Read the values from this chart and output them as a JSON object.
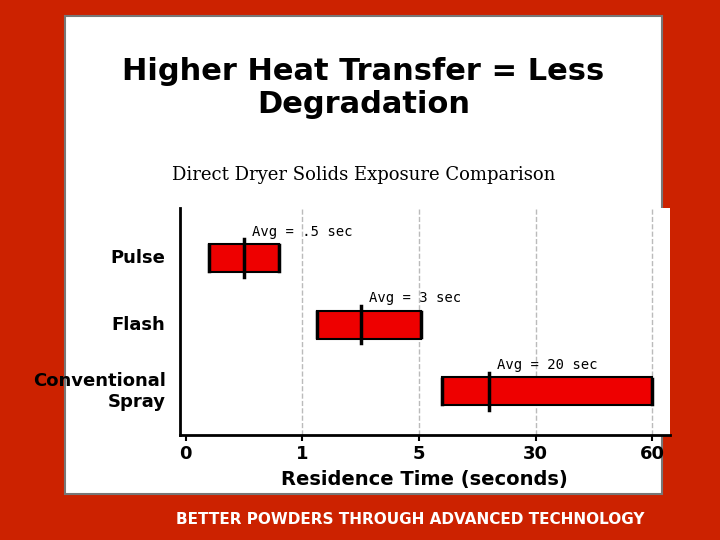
{
  "title": "Higher Heat Transfer = Less\nDegradation",
  "subtitle": "Direct Dryer Solids Exposure Comparison",
  "xlabel": "Residence Time (seconds)",
  "categories": [
    "Pulse",
    "Flash",
    "Conventional\nSpray"
  ],
  "bar_starts": [
    0.2,
    1.5,
    10.0
  ],
  "bar_ends": [
    0.8,
    5.5,
    60.0
  ],
  "bar_avgs": [
    0.5,
    3.0,
    20.0
  ],
  "avg_labels": [
    "Avg = .5 sec",
    "Avg = 3 sec",
    "Avg = 20 sec"
  ],
  "xtick_vals": [
    0,
    1,
    5,
    30,
    60
  ],
  "xtick_pos": [
    0,
    1,
    2,
    3,
    4
  ],
  "bar_color": "#ee0000",
  "bar_height": 0.42,
  "grid_color": "#bbbbbb",
  "outer_bg": "#cc2200",
  "title_fontsize": 22,
  "subtitle_fontsize": 13,
  "axis_label_fontsize": 13,
  "tick_fontsize": 13,
  "cat_fontsize": 13,
  "avg_label_fontsize": 10,
  "footer_text": "BETTER POWDERS THROUGH ADVANCED TECHNOLOGY",
  "footer_bg": "#bb1100",
  "footer_color": "#ffffff",
  "footer_fontsize": 11
}
